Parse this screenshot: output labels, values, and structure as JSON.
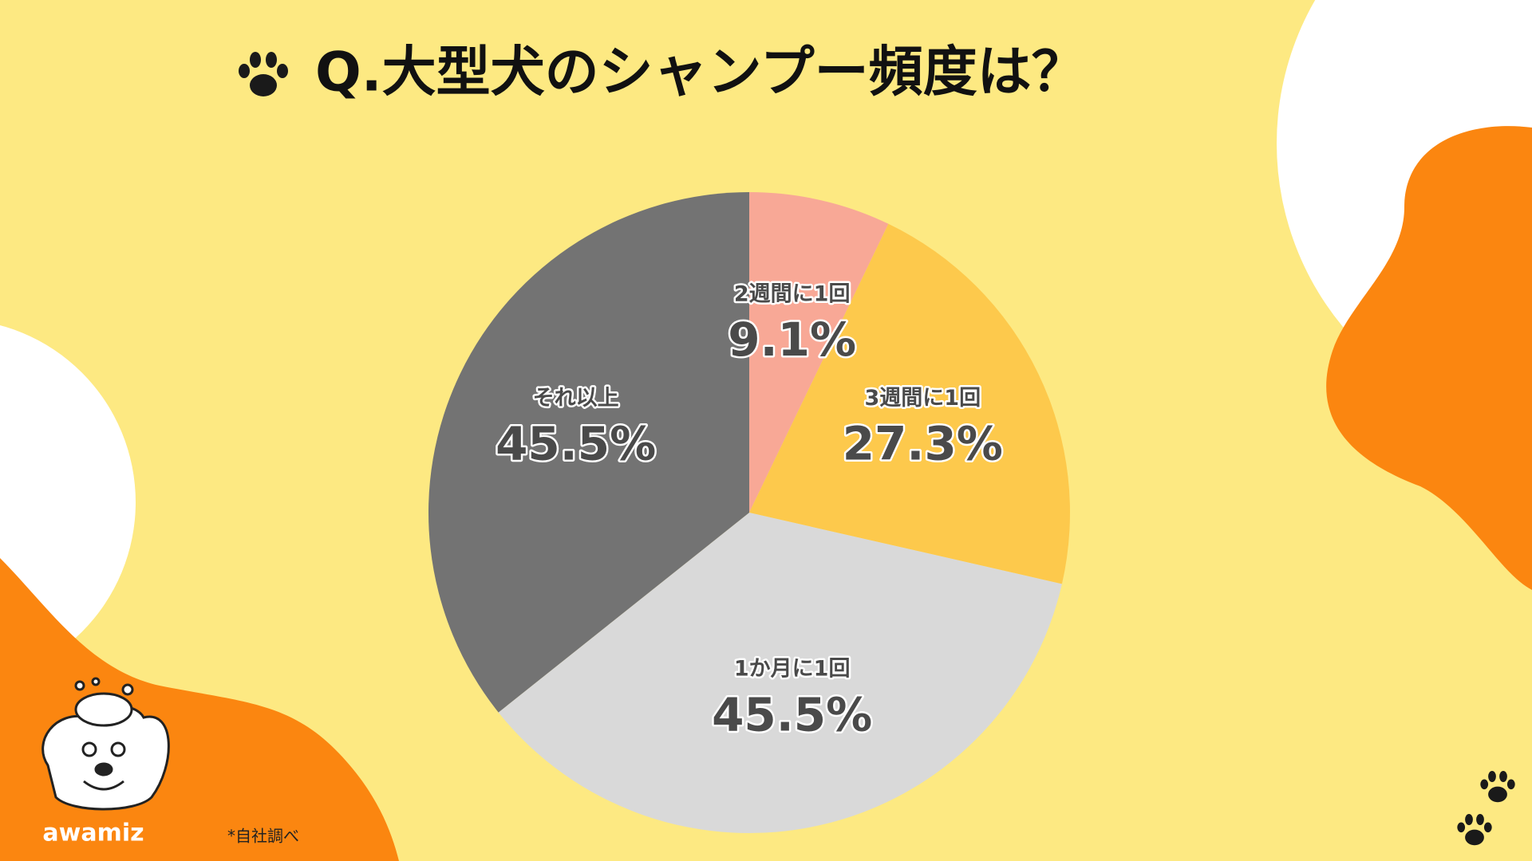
{
  "chart_data": {
    "type": "pie",
    "title": "Q.大型犬のシャンプー頻度は？",
    "categories": [
      "2週間に1回",
      "3週間に1回",
      "1か月に1回",
      "それ以上"
    ],
    "values": [
      9.1,
      27.3,
      45.5,
      45.5
    ],
    "value_labels": [
      "9.1%",
      "27.3%",
      "45.5%",
      "45.5%"
    ],
    "colors": [
      "#f8a896",
      "#fdc94c",
      "#d9d9d9",
      "#737373"
    ],
    "annotations": [
      "*自社調べ"
    ]
  },
  "brand": "awamiz"
}
